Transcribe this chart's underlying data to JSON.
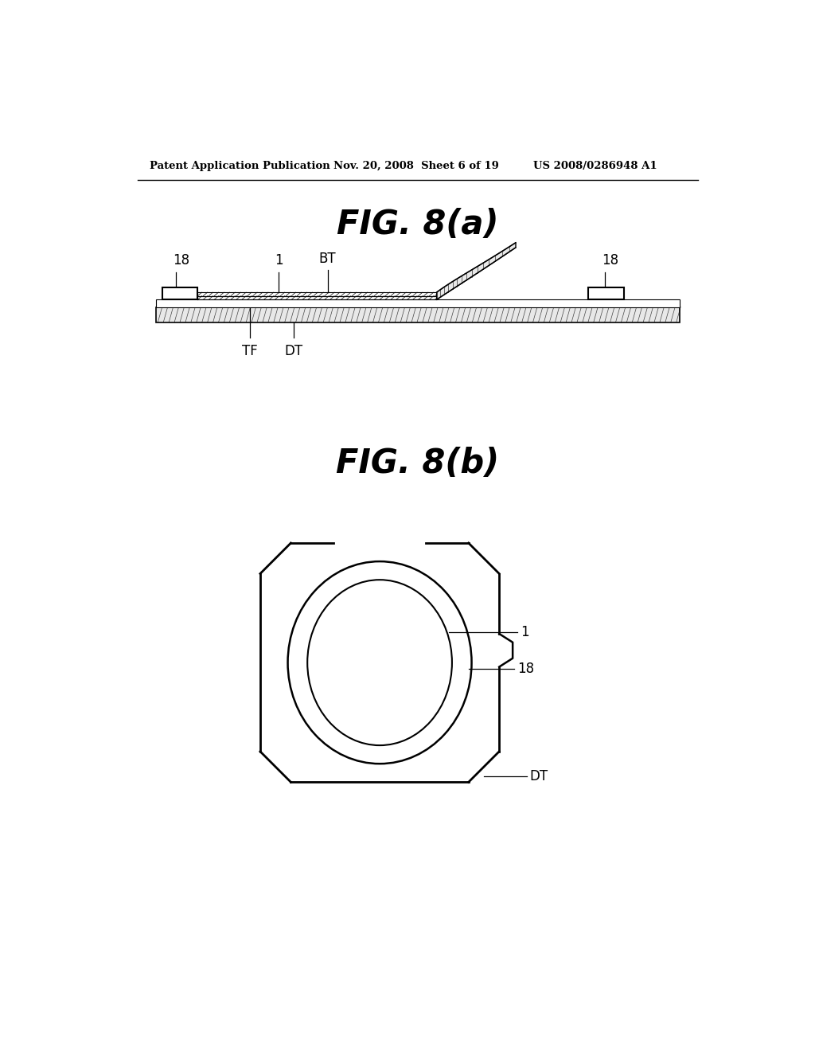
{
  "bg_color": "#ffffff",
  "header_left": "Patent Application Publication",
  "header_mid": "Nov. 20, 2008  Sheet 6 of 19",
  "header_right": "US 2008/0286948 A1",
  "fig_a_title": "FIG. 8(a)",
  "fig_b_title": "FIG. 8(b)",
  "line_color": "#000000"
}
